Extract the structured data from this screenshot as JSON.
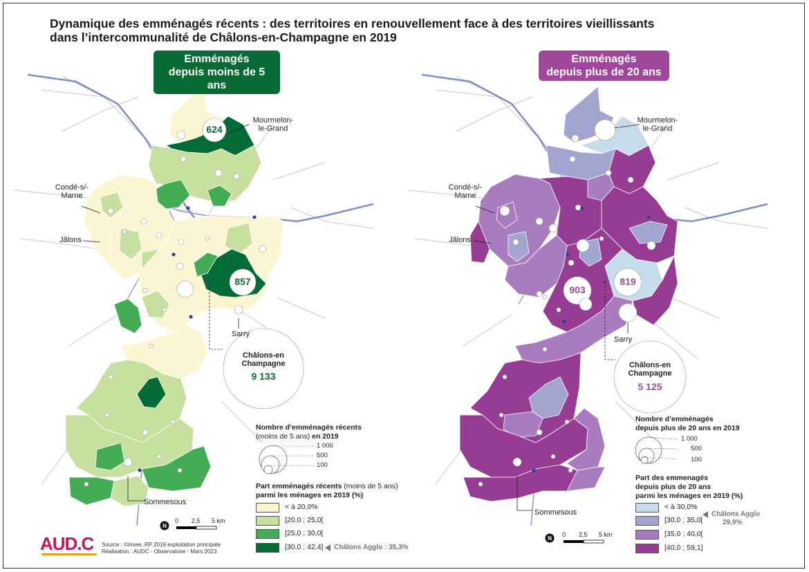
{
  "title": {
    "line1": "Dynamique des emménagés récents : des territoires en renouvellement face à des territoires vieillissants",
    "line2": "dans l’intercommunalité de Châlons-en-Champagne en 2019"
  },
  "colors": {
    "green_classes": [
      "#fbf6d1",
      "#c7df9f",
      "#44ac55",
      "#036b35"
    ],
    "purple_classes": [
      "#c6dced",
      "#a2a5d0",
      "#a87cbf",
      "#963c92"
    ],
    "green_badge": "#0a6a36",
    "purple_badge": "#a0479c",
    "road": "#c8c8c8",
    "river": "#7e8ec9"
  },
  "left_map": {
    "badge": {
      "line1": "Emménagés",
      "line2": "depuis moins de 5 ans"
    },
    "places": {
      "mourmelon_line1": "Mourmelon-",
      "mourmelon_line2": "le-Grand",
      "conde_line1": "Condé-s/-",
      "conde_line2": "Marne",
      "jalons": "Jâlons",
      "sarry": "Sarry",
      "sommesous": "Sommesous"
    },
    "circle_values": {
      "mourmelon": "624",
      "east": "857"
    },
    "big_circle": {
      "name_line1": "Châlons-en",
      "name_line2": "Champagne",
      "value": "9 133"
    },
    "legend": {
      "size_title_bold": "Nombre d’emménagés récents",
      "size_title_rest_a": "(moins de 5 ans)",
      "size_title_rest_b": " en 2019",
      "size_values": [
        "1 000",
        "500",
        "100"
      ],
      "class_title_bold_a": "Part emménagés récents",
      "class_title_rest": " (moins de 5 ans)",
      "class_title_bold_b": "parmi les ménages en 2019 (%)",
      "classes": [
        "< à 20,0%",
        "[20,0 ; 25,0[",
        "[25,0 ; 30,0[",
        "[30,0 ; 42,4]"
      ],
      "agglo": "Châlons Agglo : 35,3%"
    },
    "scale": [
      "0",
      "2,5",
      "5 km"
    ]
  },
  "right_map": {
    "badge": {
      "line1": "Emménagés",
      "line2": "depuis plus de 20 ans"
    },
    "places": {
      "mourmelon_line1": "Mourmelon-",
      "mourmelon_line2": "le-Grand",
      "conde_line1": "Condé-s/-",
      "conde_line2": "Marne",
      "jalons": "Jâlons",
      "sarry": "Sarry",
      "sommesous": "Sommesous"
    },
    "circle_values": {
      "west": "903",
      "east": "819"
    },
    "big_circle": {
      "name_line1": "Châlons-en",
      "name_line2": "Champagne",
      "value": "5 125"
    },
    "legend": {
      "size_title_bold_a": "Nombre d’emménagés",
      "size_title_bold_b": "depuis plus de 20 ans en 2019",
      "size_values": [
        "1 000",
        "500",
        "100"
      ],
      "class_title_a": "Part des emmenagés",
      "class_title_b": "depuis plus de 20 ans",
      "class_title_c": "parmi les ménages en 2019 (%)",
      "classes": [
        "< à 30,0%",
        "[30,0 ; 35,0[",
        "[35,0 ; 40,0[",
        "[40,0 ; 59,1]"
      ],
      "agglo_line1": "Châlons Agglo",
      "agglo_line2": "29,9%"
    },
    "scale": [
      "0",
      "2,5",
      "5 km"
    ]
  },
  "logo": {
    "text": "AUD.C"
  },
  "source": {
    "line1": "Source : ©Insee, RP 2019 exploitation principale",
    "line2": "Réalisation : AUDC - Observatoire - Mars 2023"
  }
}
